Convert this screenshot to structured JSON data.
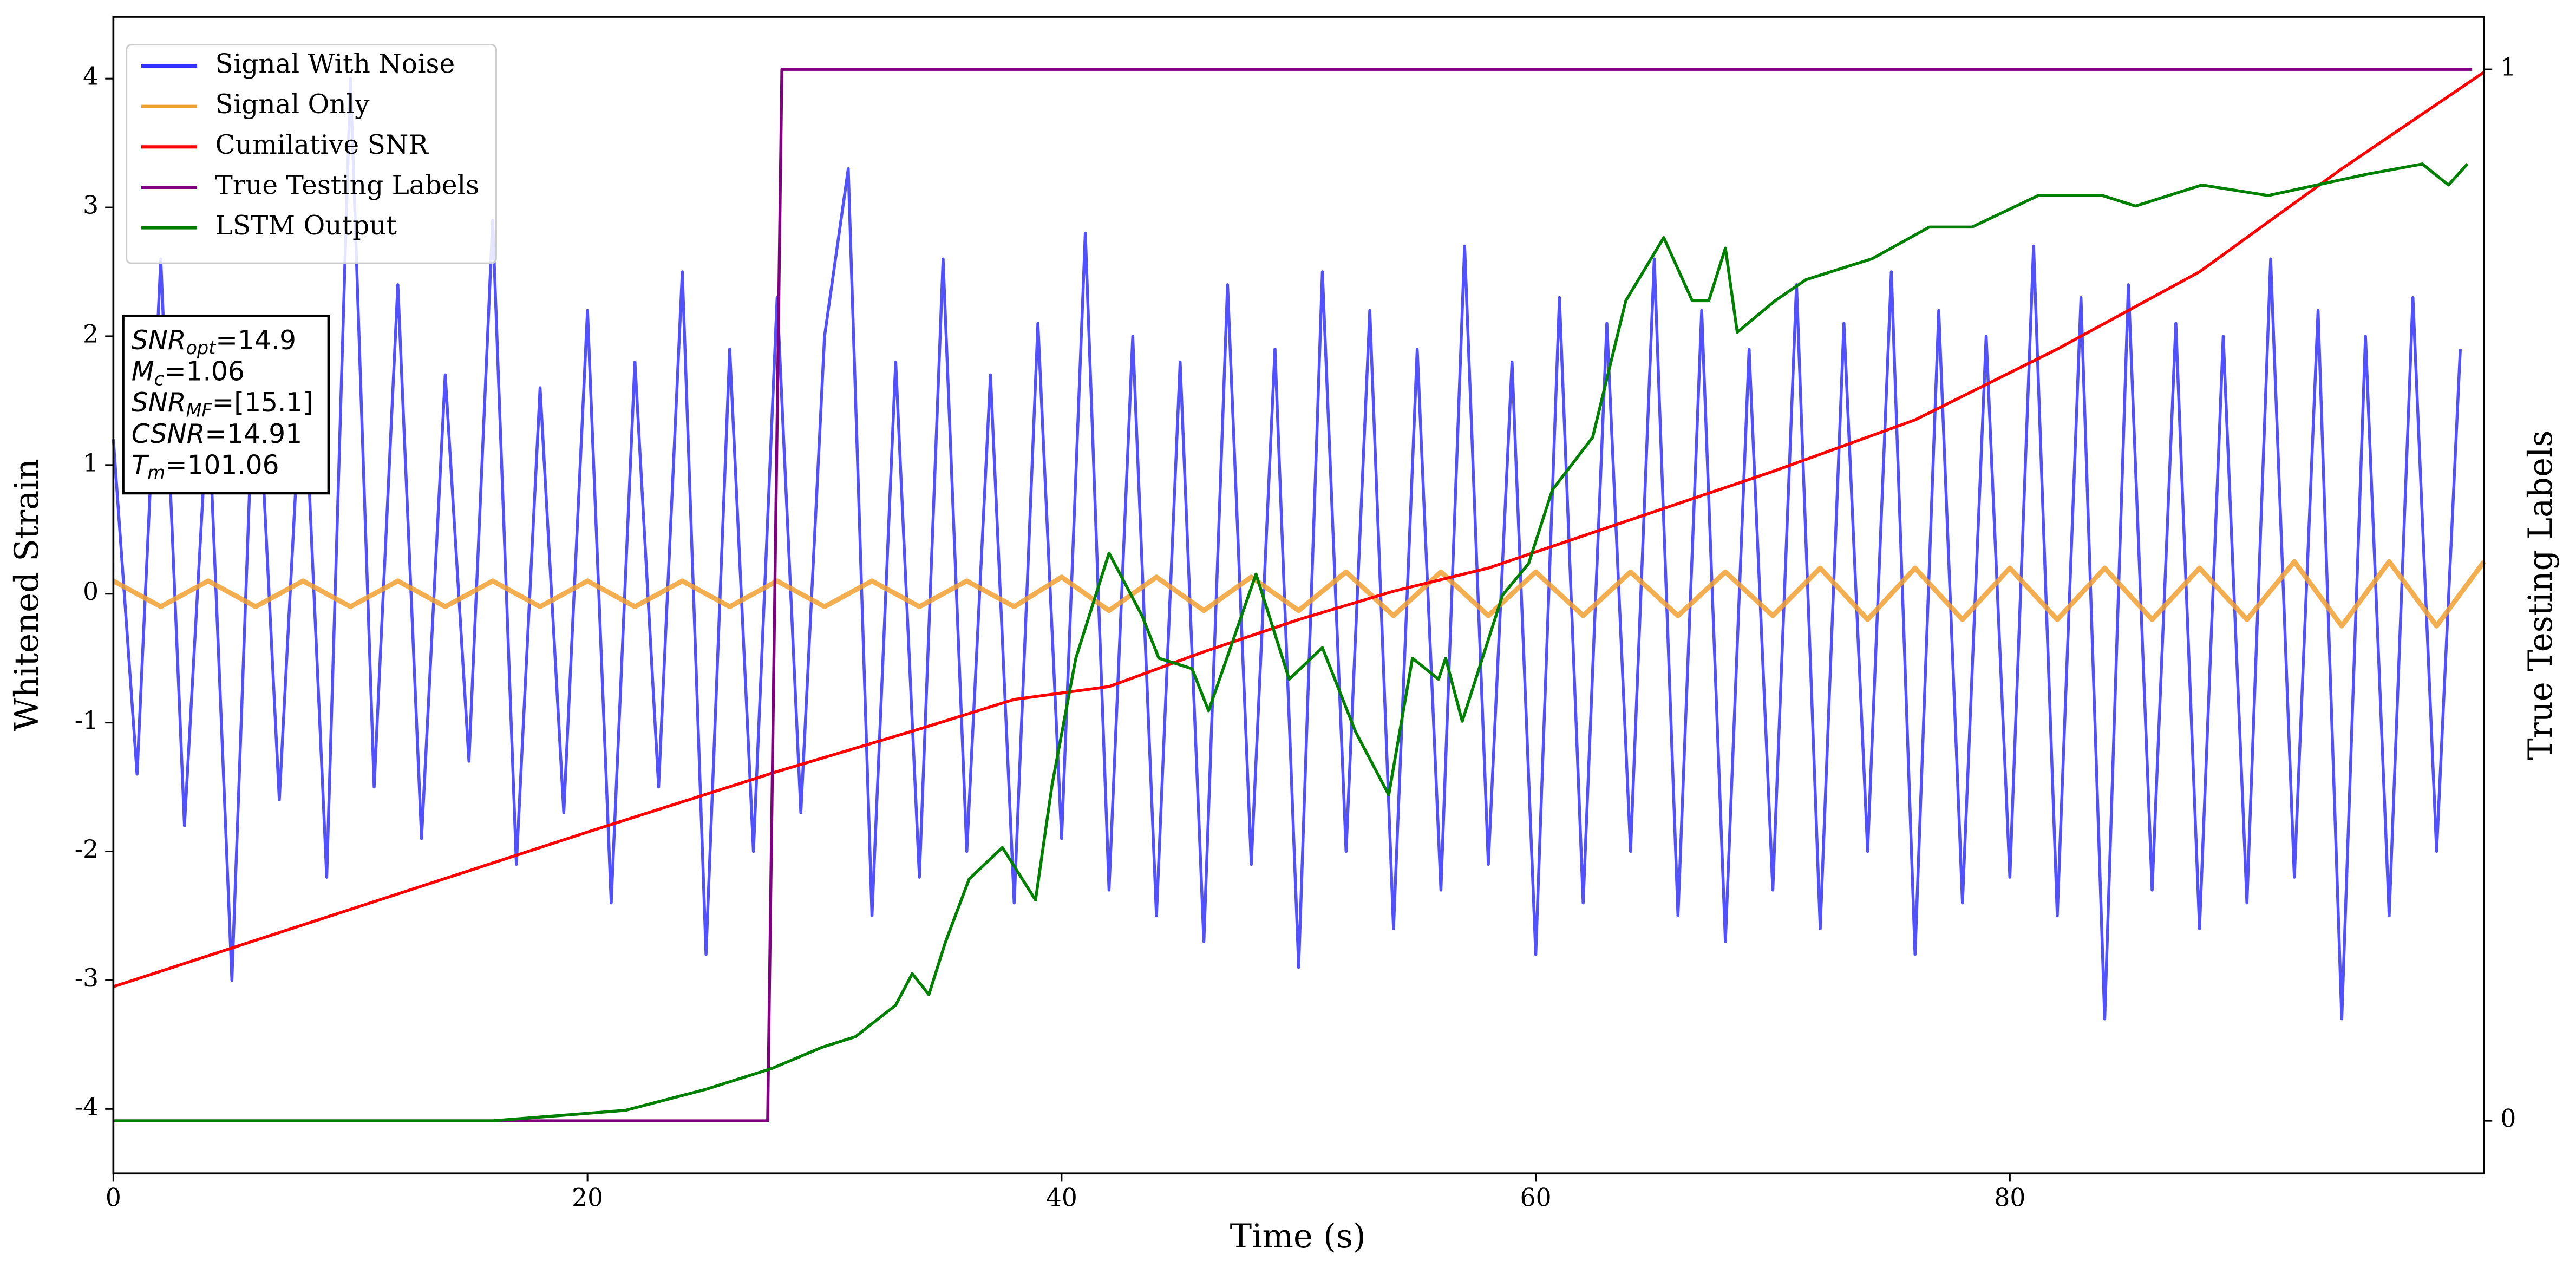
{
  "chart_data": {
    "type": "line",
    "xlabel": "Time (s)",
    "ylabel": "Whitened Strain",
    "y2label": "True Testing Labels",
    "xlim": [
      0,
      100
    ],
    "ylim": [
      -4.5,
      4.48
    ],
    "y2lim": [
      -0.05,
      1.05
    ],
    "xticks": [
      0,
      20,
      40,
      60,
      80
    ],
    "yticks": [
      -4,
      -3,
      -2,
      -1,
      0,
      1,
      2,
      3,
      4
    ],
    "y2ticks": [
      0,
      1
    ],
    "legend": "upper left",
    "annotation": [
      {
        "main": "SNR",
        "sub": "opt",
        "rest": "=14.9"
      },
      {
        "main": "M",
        "sub": "c",
        "rest": "=1.06"
      },
      {
        "main": "SNR",
        "sub": "MF",
        "rest": "=[15.1]"
      },
      {
        "main": "CSNR",
        "rest": "=14.91"
      },
      {
        "main": "T",
        "sub": "m",
        "rest": "=101.06"
      }
    ],
    "series": [
      {
        "name": "Signal With Noise",
        "color": "#3333ff",
        "x": [
          0,
          1,
          2,
          3,
          4,
          5,
          6,
          7,
          8,
          9,
          10,
          11,
          12,
          13,
          14,
          15,
          16,
          17,
          18,
          19,
          20,
          21,
          22,
          23,
          24,
          25,
          26,
          27,
          28,
          29,
          30,
          31,
          32,
          33,
          34,
          35,
          36,
          37,
          38,
          39,
          40,
          41,
          42,
          43,
          44,
          45,
          46,
          47,
          48,
          49,
          50,
          51,
          52,
          53,
          54,
          55,
          56,
          57,
          58,
          59,
          60,
          61,
          62,
          63,
          64,
          65,
          66,
          67,
          68,
          69,
          70,
          71,
          72,
          73,
          74,
          75,
          76,
          77,
          78,
          79,
          80,
          81,
          82,
          83,
          84,
          85,
          86,
          87,
          88,
          89,
          90,
          91,
          92,
          93,
          94,
          95,
          96,
          97,
          98,
          99
        ],
        "values": [
          1.2,
          -1.4,
          2.6,
          -1.8,
          1.5,
          -3.0,
          2.1,
          -1.6,
          1.9,
          -2.2,
          4.0,
          -1.5,
          2.4,
          -1.9,
          1.7,
          -1.3,
          2.9,
          -2.1,
          1.6,
          -1.7,
          2.2,
          -2.4,
          1.8,
          -1.5,
          2.5,
          -2.8,
          1.9,
          -2.0,
          2.3,
          -1.7,
          2.0,
          3.3,
          -2.5,
          1.8,
          -2.2,
          2.6,
          -2.0,
          1.7,
          -2.4,
          2.1,
          -1.9,
          2.8,
          -2.3,
          2.0,
          -2.5,
          1.8,
          -2.7,
          2.4,
          -2.1,
          1.9,
          -2.9,
          2.5,
          -2.0,
          2.2,
          -2.6,
          1.9,
          -2.3,
          2.7,
          -2.1,
          1.8,
          -2.8,
          2.3,
          -2.4,
          2.1,
          -2.0,
          2.6,
          -2.5,
          2.2,
          -2.7,
          1.9,
          -2.3,
          2.4,
          -2.6,
          2.1,
          -2.0,
          2.5,
          -2.8,
          2.2,
          -2.4,
          2.0,
          -2.2,
          2.7,
          -2.5,
          2.3,
          -3.3,
          2.4,
          -2.3,
          2.1,
          -2.6,
          2.0,
          -2.4,
          2.6,
          -2.2,
          2.2,
          -3.3,
          2.0,
          -2.5,
          2.3,
          -2.0,
          1.9
        ]
      },
      {
        "name": "Signal Only",
        "color": "#f0a030",
        "x": [
          0,
          2,
          4,
          6,
          8,
          10,
          12,
          14,
          16,
          18,
          20,
          22,
          24,
          26,
          28,
          30,
          32,
          34,
          36,
          38,
          40,
          42,
          44,
          46,
          48,
          50,
          52,
          54,
          56,
          58,
          60,
          62,
          64,
          66,
          68,
          70,
          72,
          74,
          76,
          78,
          80,
          82,
          84,
          86,
          88,
          90,
          92,
          94,
          96,
          98,
          100
        ],
        "values": [
          0.1,
          -0.1,
          0.1,
          -0.1,
          0.1,
          -0.1,
          0.1,
          -0.1,
          0.1,
          -0.1,
          0.1,
          -0.1,
          0.1,
          -0.1,
          0.1,
          -0.1,
          0.1,
          -0.1,
          0.1,
          -0.1,
          0.13,
          -0.13,
          0.13,
          -0.13,
          0.13,
          -0.13,
          0.17,
          -0.17,
          0.17,
          -0.17,
          0.17,
          -0.17,
          0.17,
          -0.17,
          0.17,
          -0.17,
          0.2,
          -0.2,
          0.2,
          -0.2,
          0.2,
          -0.2,
          0.2,
          -0.2,
          0.2,
          -0.2,
          0.25,
          -0.25,
          0.25,
          -0.25,
          0.25
        ]
      },
      {
        "name": "Cumilative SNR",
        "color": "#ff0000",
        "x": [
          0,
          10,
          20,
          28,
          34,
          38,
          42,
          46,
          50,
          54,
          58,
          62,
          66,
          70,
          76,
          82,
          88,
          94,
          100
        ],
        "values": [
          -3.05,
          -2.45,
          -1.85,
          -1.38,
          -1.05,
          -0.82,
          -0.72,
          -0.45,
          -0.2,
          0.02,
          0.2,
          0.45,
          0.7,
          0.95,
          1.35,
          1.9,
          2.5,
          3.3,
          4.05
        ]
      },
      {
        "name": "True Testing Labels",
        "color": "#800080",
        "axis": "y2",
        "x": [
          0,
          27.6,
          28.2,
          99.5
        ],
        "values": [
          0,
          0,
          1,
          1
        ]
      },
      {
        "name": "LSTM Output",
        "color": "#008000",
        "axis": "y2",
        "x": [
          0,
          16.0,
          21.6,
          25.0,
          27.8,
          29.9,
          31.3,
          33.0,
          33.7,
          34.4,
          35.1,
          36.1,
          37.5,
          38.9,
          39.6,
          40.6,
          42.0,
          43.4,
          44.1,
          45.5,
          46.2,
          48.2,
          49.6,
          51.0,
          52.4,
          53.8,
          54.8,
          55.9,
          56.2,
          56.9,
          58.6,
          59.7,
          60.7,
          62.4,
          63.8,
          65.4,
          66.6,
          67.3,
          68.0,
          68.5,
          70.1,
          71.4,
          74.2,
          76.6,
          78.4,
          81.2,
          83.9,
          85.3,
          88.1,
          90.9,
          95.0,
          97.4,
          98.5,
          99.3
        ],
        "values": [
          0,
          0,
          0.01,
          0.03,
          0.05,
          0.07,
          0.08,
          0.11,
          0.14,
          0.12,
          0.17,
          0.23,
          0.26,
          0.21,
          0.32,
          0.44,
          0.54,
          0.48,
          0.44,
          0.43,
          0.39,
          0.52,
          0.42,
          0.45,
          0.37,
          0.31,
          0.44,
          0.42,
          0.44,
          0.38,
          0.5,
          0.53,
          0.6,
          0.65,
          0.78,
          0.84,
          0.78,
          0.78,
          0.83,
          0.75,
          0.78,
          0.8,
          0.82,
          0.85,
          0.85,
          0.88,
          0.88,
          0.87,
          0.89,
          0.88,
          0.9,
          0.91,
          0.89,
          0.91
        ]
      }
    ]
  }
}
